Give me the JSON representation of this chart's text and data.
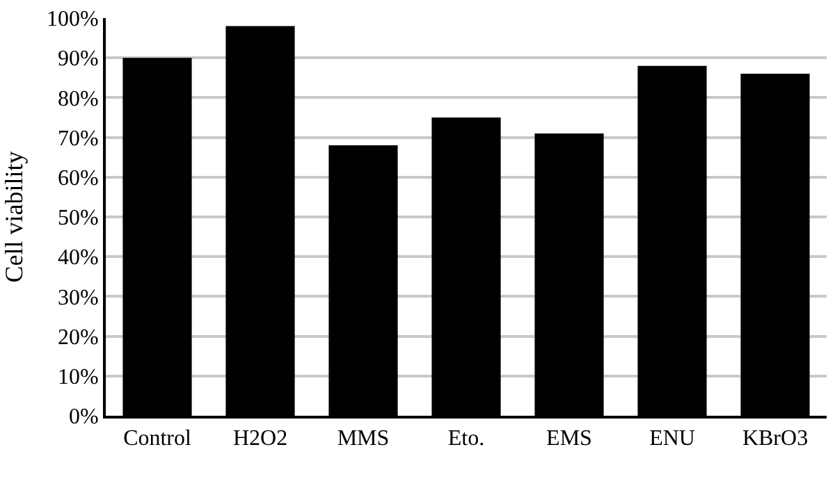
{
  "chart_data": {
    "type": "bar",
    "ylabel": "Cell viability",
    "categories": [
      "Control",
      "H2O2",
      "MMS",
      "Eto.",
      "EMS",
      "ENU",
      "KBrO3"
    ],
    "values": [
      90,
      98,
      68,
      75,
      71,
      88,
      86
    ],
    "color": "#000000",
    "ylim": [
      0,
      100
    ],
    "yticks": [
      {
        "value": 0,
        "label": "0%"
      },
      {
        "value": 10,
        "label": "10%"
      },
      {
        "value": 20,
        "label": "20%"
      },
      {
        "value": 30,
        "label": "30%"
      },
      {
        "value": 40,
        "label": "40%"
      },
      {
        "value": 50,
        "label": "50%"
      },
      {
        "value": 60,
        "label": "60%"
      },
      {
        "value": 70,
        "label": "70%"
      },
      {
        "value": 80,
        "label": "80%"
      },
      {
        "value": 90,
        "label": "90%"
      },
      {
        "value": 100,
        "label": "100%"
      }
    ],
    "grid": "y",
    "legend": false
  }
}
